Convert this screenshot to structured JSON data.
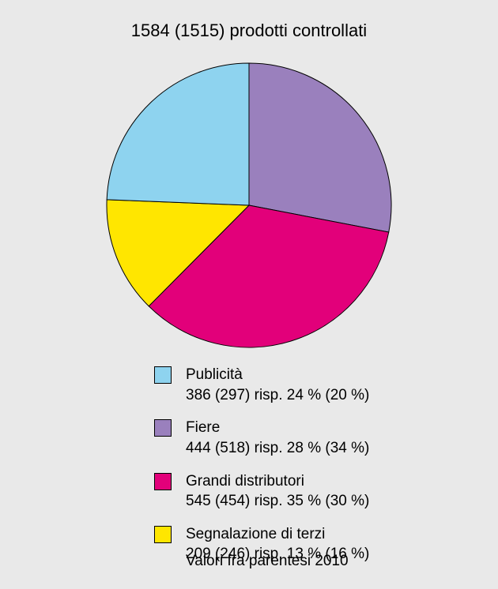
{
  "title": "1584 (1515) prodotti controllati",
  "footnote": "Valori fra parentesi 2010",
  "chart": {
    "type": "pie",
    "radius": 180,
    "stroke": "#000000",
    "stroke_width": 1,
    "background_color": "#e9e9e9",
    "start_angle_deg": -90,
    "slices": [
      {
        "key": "fiere",
        "label": "Fiere",
        "value": 444,
        "pct": 28,
        "prev_value": 518,
        "prev_pct": 34,
        "color": "#9a80bd"
      },
      {
        "key": "grandi",
        "label": "Grandi distributori",
        "value": 545,
        "pct": 35,
        "prev_value": 454,
        "prev_pct": 30,
        "color": "#e2007a"
      },
      {
        "key": "segnalazione",
        "label": "Segnalazione di terzi",
        "value": 209,
        "pct": 13,
        "prev_value": 246,
        "prev_pct": 16,
        "color": "#ffe600"
      },
      {
        "key": "publicita",
        "label": "Publicità",
        "value": 386,
        "pct": 24,
        "prev_value": 297,
        "prev_pct": 20,
        "color": "#8ed3ef"
      }
    ],
    "legend_order": [
      "publicita",
      "fiere",
      "grandi",
      "segnalazione"
    ],
    "title_fontsize": 22,
    "legend_fontsize": 19,
    "footnote_fontsize": 19
  }
}
